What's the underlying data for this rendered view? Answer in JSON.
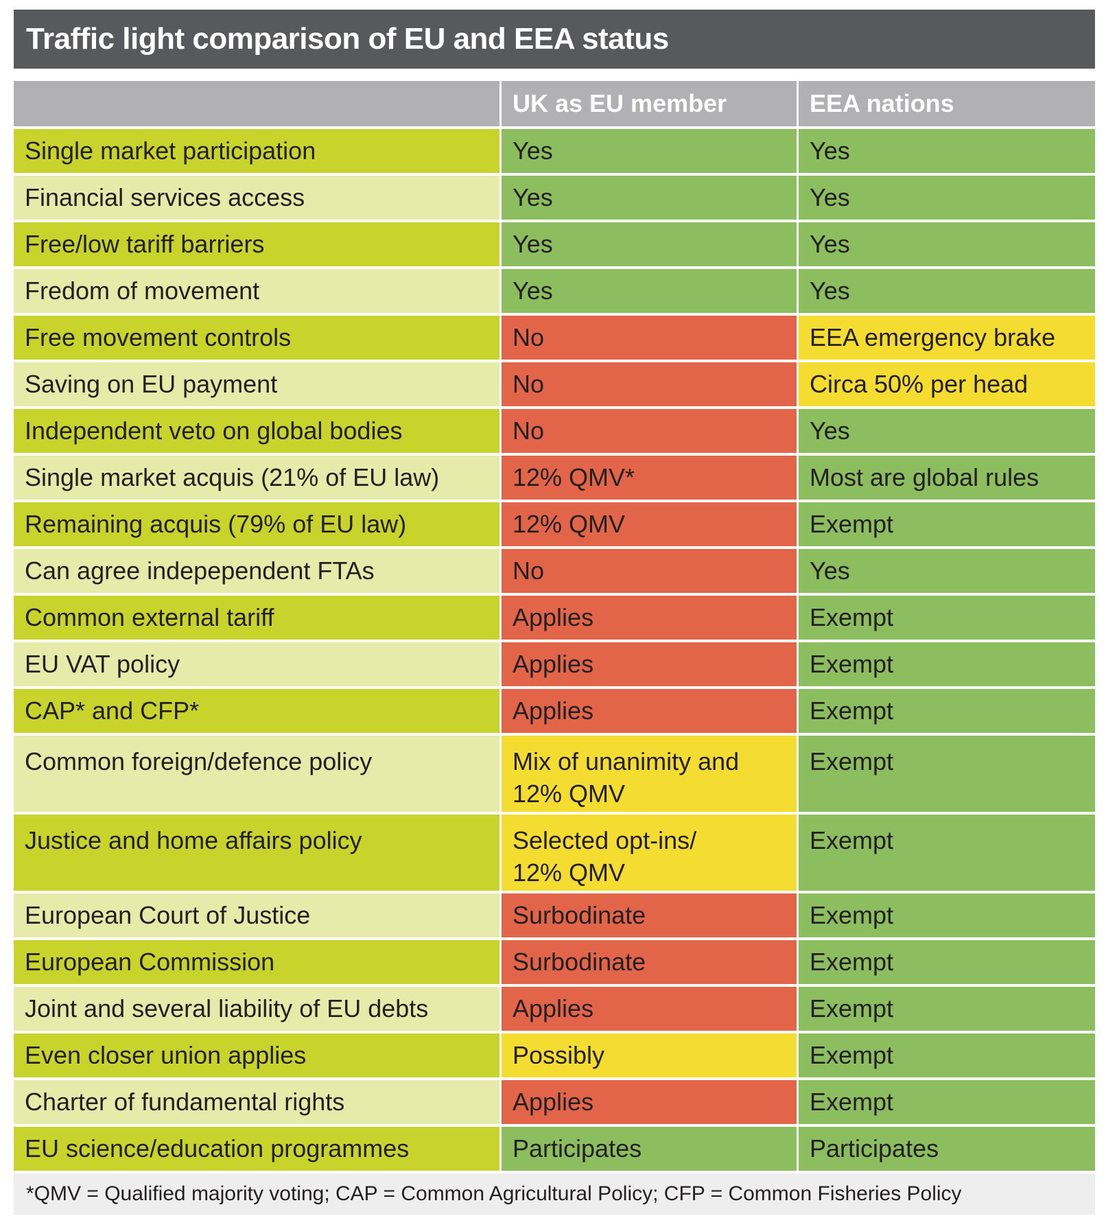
{
  "title": "Traffic light comparison of EU and EEA status",
  "colors": {
    "title_bg": "#58595b",
    "header_bg": "#b1b0b2",
    "label_dark": "#c8d42c",
    "label_light": "#e6ebaa",
    "green": "#8cbd5f",
    "red": "#e2654a",
    "yellow": "#f4dc30",
    "footnote_bg": "#eeeeee"
  },
  "header": {
    "col0": "",
    "col1": "UK as EU member",
    "col2": "EEA nations"
  },
  "rows": [
    {
      "label": "Single market participation",
      "uk": "Yes",
      "uk_status": "green",
      "eea": "Yes",
      "eea_status": "green"
    },
    {
      "label": "Financial services access",
      "uk": "Yes",
      "uk_status": "green",
      "eea": "Yes",
      "eea_status": "green"
    },
    {
      "label": "Free/low tariff barriers",
      "uk": "Yes",
      "uk_status": "green",
      "eea": "Yes",
      "eea_status": "green"
    },
    {
      "label": "Fredom of movement",
      "uk": "Yes",
      "uk_status": "green",
      "eea": "Yes",
      "eea_status": "green"
    },
    {
      "label": "Free movement controls",
      "uk": "No",
      "uk_status": "red",
      "eea": "EEA emergency brake",
      "eea_status": "yellow"
    },
    {
      "label": "Saving on EU payment",
      "uk": "No",
      "uk_status": "red",
      "eea": "Circa 50% per head",
      "eea_status": "yellow"
    },
    {
      "label": "Independent veto on global bodies",
      "uk": "No",
      "uk_status": "red",
      "eea": "Yes",
      "eea_status": "green"
    },
    {
      "label": "Single market acquis (21% of EU law)",
      "uk": "12% QMV*",
      "uk_status": "red",
      "eea": "Most are global rules",
      "eea_status": "green"
    },
    {
      "label": "Remaining acquis (79% of EU law)",
      "uk": "12% QMV",
      "uk_status": "red",
      "eea": "Exempt",
      "eea_status": "green"
    },
    {
      "label": "Can agree indepependent FTAs",
      "uk": "No",
      "uk_status": "red",
      "eea": "Yes",
      "eea_status": "green"
    },
    {
      "label": "Common external tariff",
      "uk": "Applies",
      "uk_status": "red",
      "eea": "Exempt",
      "eea_status": "green"
    },
    {
      "label": "EU VAT policy",
      "uk": "Applies",
      "uk_status": "red",
      "eea": "Exempt",
      "eea_status": "green"
    },
    {
      "label": "CAP* and CFP*",
      "uk": "Applies",
      "uk_status": "red",
      "eea": "Exempt",
      "eea_status": "green"
    },
    {
      "label": "Common foreign/defence policy",
      "uk": "Mix of unanimity and\n12% QMV",
      "uk_status": "yellow",
      "eea": "Exempt",
      "eea_status": "green",
      "tall": true
    },
    {
      "label": "Justice and home affairs policy",
      "uk": "Selected opt-ins/\n12% QMV",
      "uk_status": "yellow",
      "eea": "Exempt",
      "eea_status": "green",
      "tall": true
    },
    {
      "label": "European Court of Justice",
      "uk": "Surbodinate",
      "uk_status": "red",
      "eea": "Exempt",
      "eea_status": "green"
    },
    {
      "label": "European Commission",
      "uk": "Surbodinate",
      "uk_status": "red",
      "eea": "Exempt",
      "eea_status": "green"
    },
    {
      "label": "Joint and several liability of EU debts",
      "uk": "Applies",
      "uk_status": "red",
      "eea": "Exempt",
      "eea_status": "green"
    },
    {
      "label": "Even closer union applies",
      "uk": "Possibly",
      "uk_status": "yellow",
      "eea": "Exempt",
      "eea_status": "green"
    },
    {
      "label": "Charter of fundamental rights",
      "uk": "Applies",
      "uk_status": "red",
      "eea": "Exempt",
      "eea_status": "green"
    },
    {
      "label": "EU science/education programmes",
      "uk": "Participates",
      "uk_status": "green",
      "eea": "Participates",
      "eea_status": "green"
    }
  ],
  "footnote": "*QMV = Qualified majority voting; CAP = Common Agricultural Policy; CFP = Common Fisheries Policy"
}
